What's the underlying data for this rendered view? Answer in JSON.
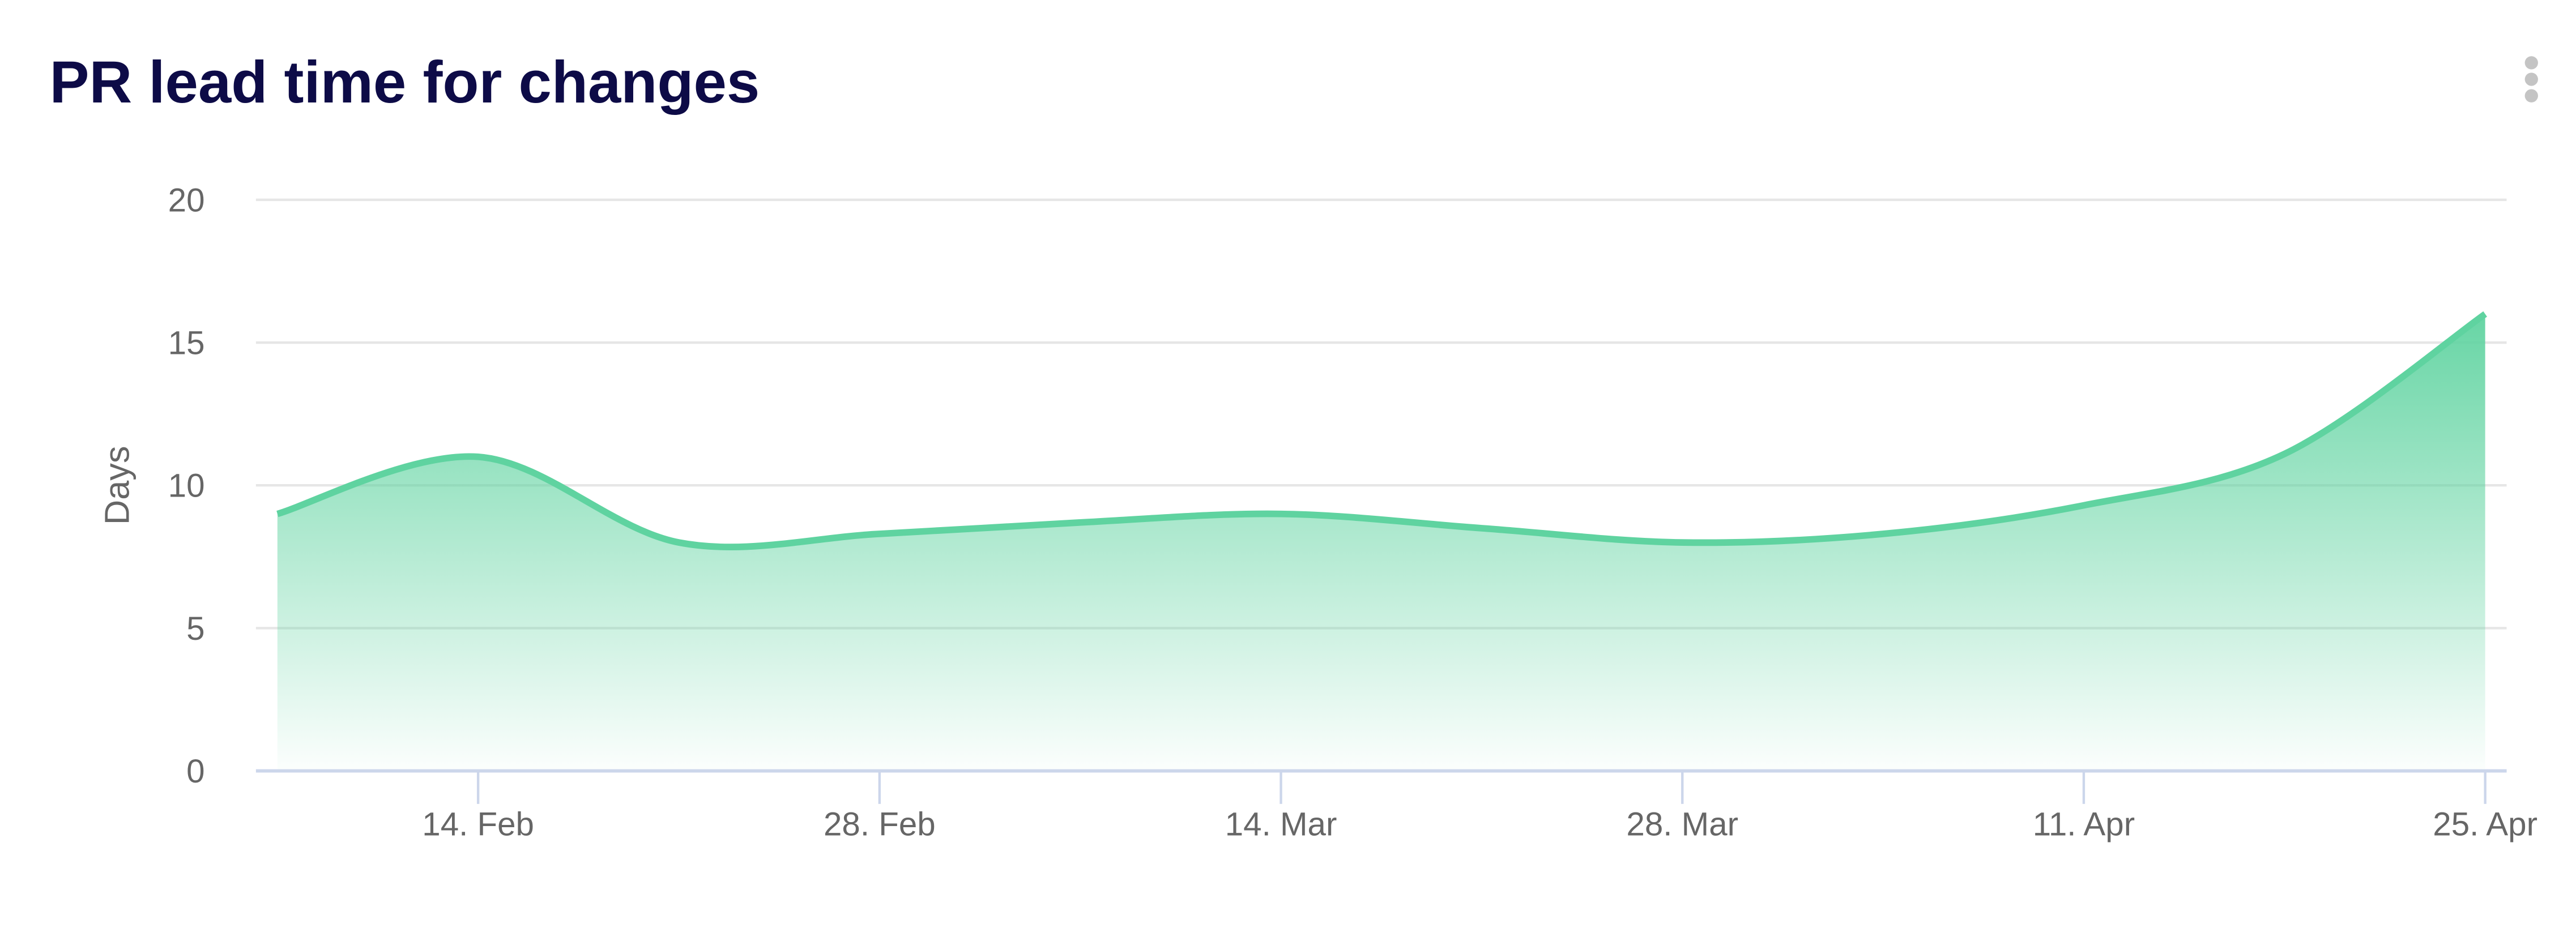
{
  "header": {
    "title": "PR lead time for changes",
    "menu_icon": "kebab-menu-icon"
  },
  "chart_data": {
    "type": "area",
    "title": "PR lead time for changes",
    "xlabel": "",
    "ylabel": "Days",
    "x": [
      "2022-02-07",
      "2022-02-14",
      "2022-02-21",
      "2022-02-28",
      "2022-03-07",
      "2022-03-14",
      "2022-03-21",
      "2022-03-28",
      "2022-04-04",
      "2022-04-11",
      "2022-04-18",
      "2022-04-25"
    ],
    "series": [
      {
        "values": [
          9,
          11,
          8,
          8.3,
          8.7,
          9,
          8.5,
          8,
          8.3,
          9.3,
          11.1,
          16
        ]
      }
    ],
    "ylim": [
      0,
      20
    ],
    "yticks": [
      "0",
      "5",
      "10",
      "15",
      "20"
    ],
    "xticks": [
      {
        "date": "2022-02-14",
        "label": "14. Feb"
      },
      {
        "date": "2022-02-28",
        "label": "28. Feb"
      },
      {
        "date": "2022-03-14",
        "label": "14. Mar"
      },
      {
        "date": "2022-03-28",
        "label": "28. Mar"
      },
      {
        "date": "2022-04-11",
        "label": "11. Apr"
      },
      {
        "date": "2022-04-25",
        "label": "25. Apr"
      }
    ],
    "grid": true,
    "legend": "none",
    "colors": {
      "line": "#5fd3a0",
      "fill": "#5fd3a0",
      "grid": "#e6e6e6",
      "axis": "#ccd6eb"
    }
  }
}
